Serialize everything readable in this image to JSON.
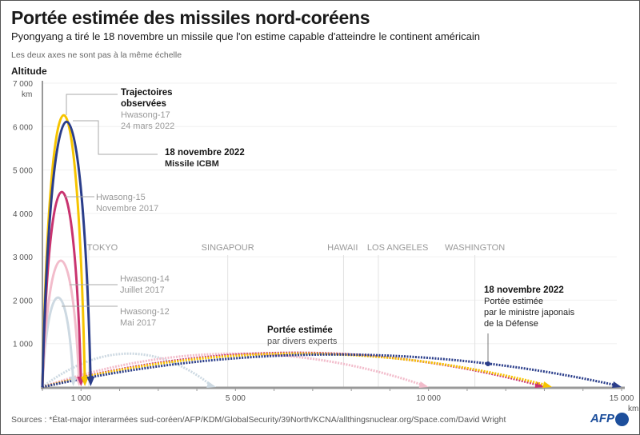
{
  "header": {
    "title": "Portée estimée des missiles nord-coréens",
    "subtitle": "Pyongyang a tiré le 18 novembre un missile que l'on estime capable d'atteindre le continent américain",
    "note": "Les deux axes ne sont pas à la même échelle"
  },
  "chart_data": {
    "type": "line",
    "ylabel": "Altitude",
    "yunit": "km",
    "xunit": "km",
    "ylim": [
      0,
      7000
    ],
    "xlim": [
      0,
      15000
    ],
    "yticks": [
      "1 000",
      "2 000",
      "3 000",
      "4 000",
      "5 000",
      "6 000",
      "7 000"
    ],
    "xticks": [
      "1 000",
      "5 000",
      "10 000",
      "15 000"
    ],
    "grid": true,
    "cities": [
      {
        "name": "Tokyo",
        "distance": 1200
      },
      {
        "name": "Singapour",
        "distance": 4800
      },
      {
        "name": "Hawaii",
        "distance": 7800
      },
      {
        "name": "Los Angeles",
        "distance": 8700
      },
      {
        "name": "Washington",
        "distance": 11200
      }
    ],
    "series": [
      {
        "name": "Hwasong-12",
        "date": "Mai 2017",
        "color": "#cdd9e2",
        "observed_apogee": 2050,
        "observed_range": 800,
        "estimated_range": 4500,
        "estimated_apogee": 760
      },
      {
        "name": "Hwasong-14",
        "date": "Juillet 2017",
        "color": "#f2bccb",
        "observed_apogee": 2900,
        "observed_range": 950,
        "estimated_range": 10000,
        "estimated_apogee": 760
      },
      {
        "name": "Hwasong-15",
        "date": "Novembre 2017",
        "color": "#c9336f",
        "observed_apogee": 4480,
        "observed_range": 1000,
        "estimated_range": 13000,
        "estimated_apogee": 780
      },
      {
        "name": "Hwasong-17",
        "date": "24 mars 2022",
        "color": "#f6c400",
        "observed_apogee": 6250,
        "observed_range": 1100,
        "estimated_range": 13200,
        "estimated_apogee": 760
      },
      {
        "name": "18 novembre 2022",
        "date": "Missile ICBM",
        "color": "#2a3d8a",
        "observed_apogee": 6100,
        "observed_range": 1250,
        "estimated_range": 15000,
        "estimated_apogee": 740
      }
    ],
    "annotations": {
      "observed_title": "Trajectoires observées",
      "experts_title": "Portée estimée",
      "experts_sub": "par divers experts",
      "japan_title": "18 novembre 2022",
      "japan_l1": "Portée estimée",
      "japan_l2": "par le ministre japonais",
      "japan_l3": "de la Défense"
    }
  },
  "footer": {
    "sources": "Sources : *État-major interarmées sud-coréen/AFP/KDM/GlobalSecurity/39North/KCNA/allthingsnuclear.org/Space.com/David Wright",
    "logo": "AFP"
  }
}
